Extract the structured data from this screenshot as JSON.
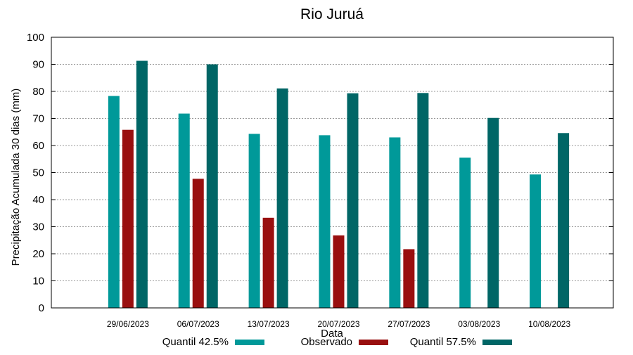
{
  "chart_data": {
    "type": "bar",
    "title": "Rio Juruá",
    "xlabel": "Data",
    "ylabel": "Precipitação Acumulada 30 dias (mm)",
    "ylim": [
      0,
      100
    ],
    "yticks": [
      0,
      10,
      20,
      30,
      40,
      50,
      60,
      70,
      80,
      90,
      100
    ],
    "grid": true,
    "legend_position": "bottom",
    "categories": [
      "29/06/2023",
      "06/07/2023",
      "13/07/2023",
      "20/07/2023",
      "27/07/2023",
      "03/08/2023",
      "10/08/2023"
    ],
    "series": [
      {
        "name": "Quantil 42.5%",
        "color": "#009999",
        "values": [
          78.3,
          71.8,
          64.3,
          63.8,
          63.0,
          55.5,
          49.3
        ]
      },
      {
        "name": "Observado",
        "color": "#990f0f",
        "values": [
          65.8,
          47.7,
          33.3,
          26.8,
          21.7,
          null,
          null
        ]
      },
      {
        "name": "Quantil 57.5%",
        "color": "#006666",
        "values": [
          91.3,
          90.0,
          81.1,
          79.3,
          79.4,
          70.2,
          64.6
        ]
      }
    ]
  }
}
